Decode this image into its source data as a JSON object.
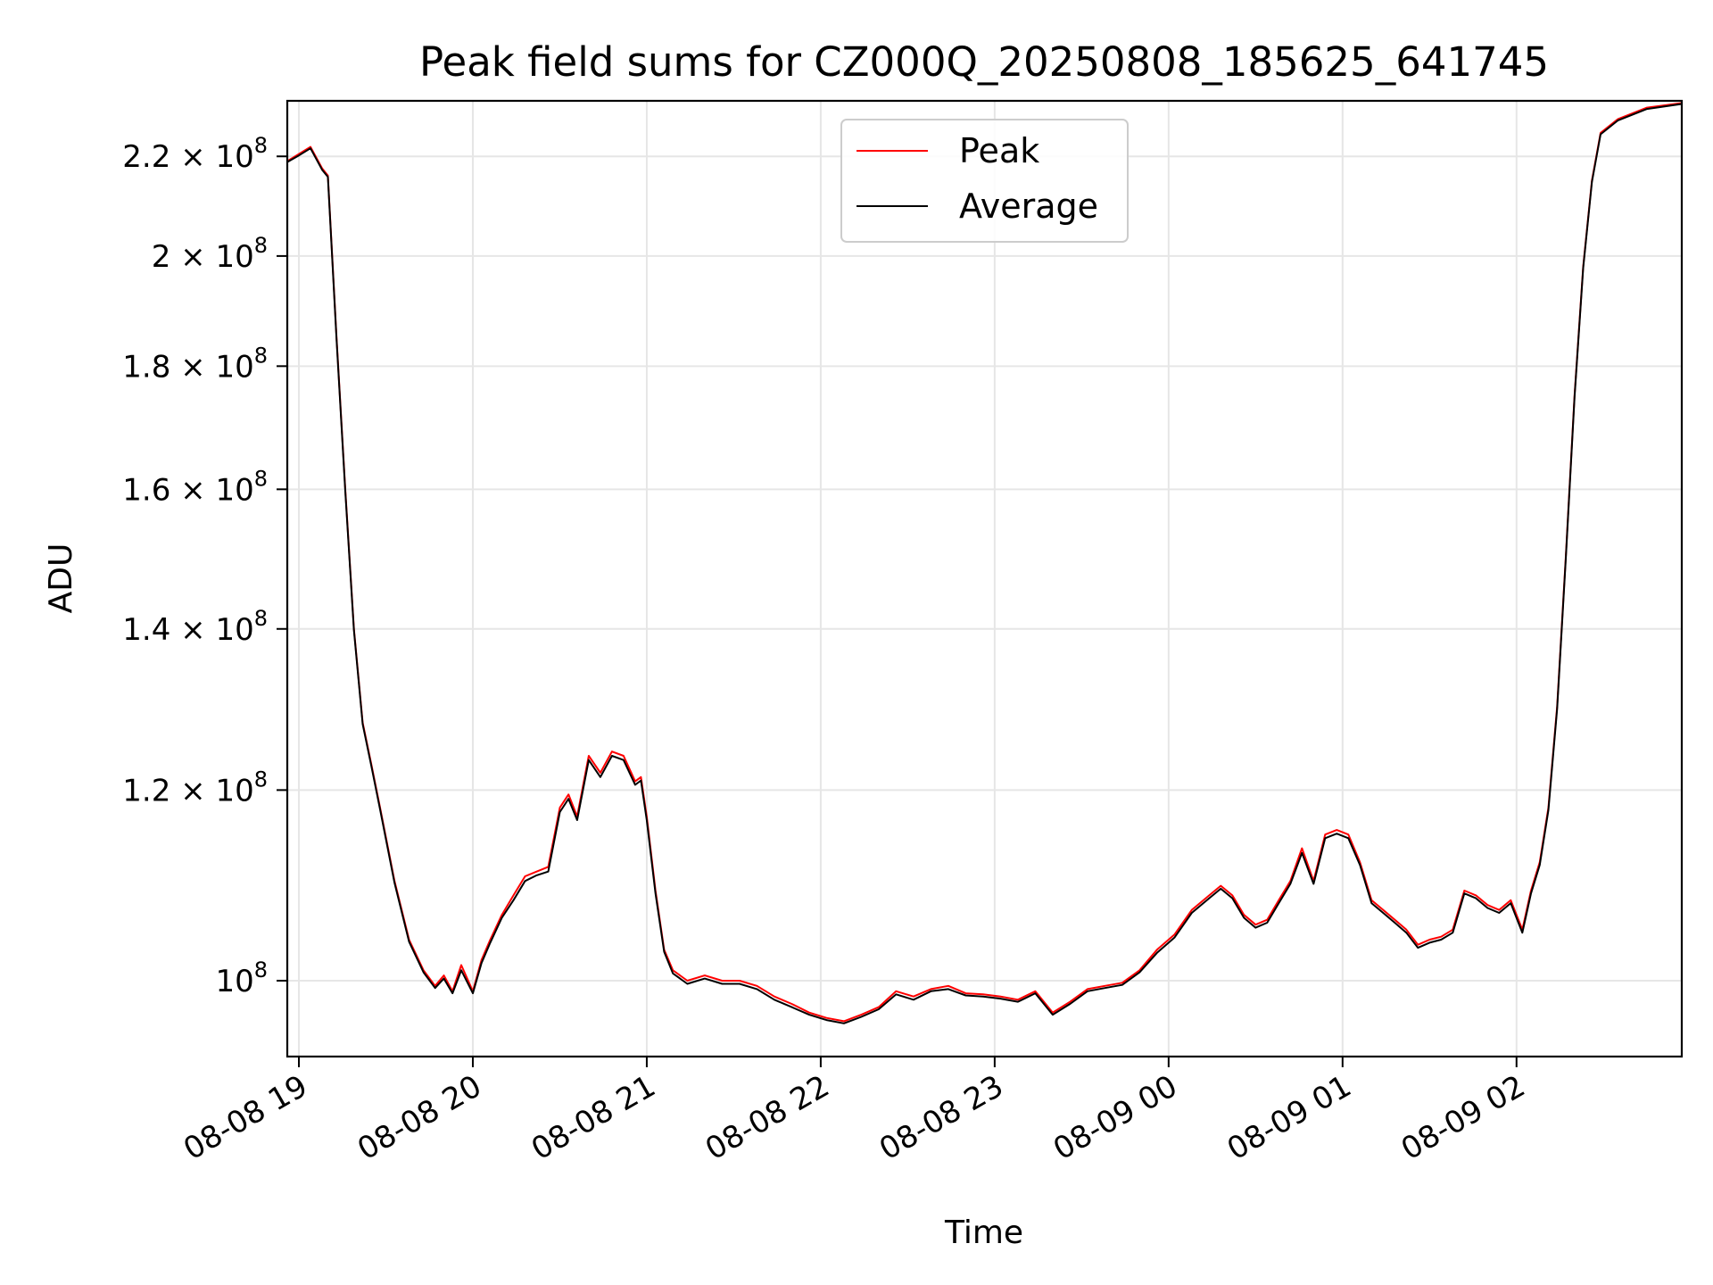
{
  "chart_data": {
    "type": "line",
    "title": "Peak field sums for CZ000Q_20250808_185625_641745",
    "xlabel": "Time",
    "ylabel": "ADU",
    "y_scale": "log",
    "ylim": [
      93000000,
      232000000
    ],
    "xlim": [
      "2025-08-08 18:56",
      "2025-08-09 02:57"
    ],
    "grid": true,
    "legend_position": "upper-center",
    "x_ticks": [
      {
        "t": "2025-08-08 19:00",
        "label": "08-08 19"
      },
      {
        "t": "2025-08-08 20:00",
        "label": "08-08 20"
      },
      {
        "t": "2025-08-08 21:00",
        "label": "08-08 21"
      },
      {
        "t": "2025-08-08 22:00",
        "label": "08-08 22"
      },
      {
        "t": "2025-08-08 23:00",
        "label": "08-08 23"
      },
      {
        "t": "2025-08-09 00:00",
        "label": "08-09 00"
      },
      {
        "t": "2025-08-09 01:00",
        "label": "08-09 01"
      },
      {
        "t": "2025-08-09 02:00",
        "label": "08-09 02"
      }
    ],
    "y_ticks": [
      {
        "v": 100000000,
        "mant": "10",
        "exp": "8"
      },
      {
        "v": 120000000,
        "mant": "1.2 × 10",
        "exp": "8"
      },
      {
        "v": 140000000,
        "mant": "1.4 × 10",
        "exp": "8"
      },
      {
        "v": 160000000,
        "mant": "1.6 × 10",
        "exp": "8"
      },
      {
        "v": 180000000,
        "mant": "1.8 × 10",
        "exp": "8"
      },
      {
        "v": 200000000,
        "mant": "2 × 10",
        "exp": "8"
      },
      {
        "v": 220000000,
        "mant": "2.2 × 10",
        "exp": "8"
      }
    ],
    "series": [
      {
        "name": "Peak",
        "color": "#ff0000",
        "points": [
          [
            "2025-08-08 18:56",
            219000000
          ],
          [
            "2025-08-08 19:00",
            220500000
          ],
          [
            "2025-08-08 19:04",
            222000000
          ],
          [
            "2025-08-08 19:08",
            217500000
          ],
          [
            "2025-08-08 19:10",
            216000000
          ],
          [
            "2025-08-08 19:13",
            185000000
          ],
          [
            "2025-08-08 19:16",
            160000000
          ],
          [
            "2025-08-08 19:19",
            140000000
          ],
          [
            "2025-08-08 19:22",
            128000000
          ],
          [
            "2025-08-08 19:25",
            123000000
          ],
          [
            "2025-08-08 19:28",
            118000000
          ],
          [
            "2025-08-08 19:33",
            110000000
          ],
          [
            "2025-08-08 19:38",
            104000000
          ],
          [
            "2025-08-08 19:43",
            101000000
          ],
          [
            "2025-08-08 19:47",
            99500000
          ],
          [
            "2025-08-08 19:50",
            100500000
          ],
          [
            "2025-08-08 19:53",
            99000000
          ],
          [
            "2025-08-08 19:56",
            101500000
          ],
          [
            "2025-08-08 20:00",
            99000000
          ],
          [
            "2025-08-08 20:03",
            102000000
          ],
          [
            "2025-08-08 20:06",
            104000000
          ],
          [
            "2025-08-08 20:10",
            106500000
          ],
          [
            "2025-08-08 20:14",
            108500000
          ],
          [
            "2025-08-08 20:18",
            110500000
          ],
          [
            "2025-08-08 20:22",
            111000000
          ],
          [
            "2025-08-08 20:26",
            111500000
          ],
          [
            "2025-08-08 20:30",
            118000000
          ],
          [
            "2025-08-08 20:33",
            119500000
          ],
          [
            "2025-08-08 20:36",
            117000000
          ],
          [
            "2025-08-08 20:40",
            124000000
          ],
          [
            "2025-08-08 20:44",
            122000000
          ],
          [
            "2025-08-08 20:48",
            124500000
          ],
          [
            "2025-08-08 20:52",
            124000000
          ],
          [
            "2025-08-08 20:56",
            121000000
          ],
          [
            "2025-08-08 20:58",
            121500000
          ],
          [
            "2025-08-08 21:00",
            117000000
          ],
          [
            "2025-08-08 21:03",
            109000000
          ],
          [
            "2025-08-08 21:06",
            103000000
          ],
          [
            "2025-08-08 21:09",
            101000000
          ],
          [
            "2025-08-08 21:14",
            100000000
          ],
          [
            "2025-08-08 21:20",
            100500000
          ],
          [
            "2025-08-08 21:26",
            100000000
          ],
          [
            "2025-08-08 21:32",
            100000000
          ],
          [
            "2025-08-08 21:38",
            99500000
          ],
          [
            "2025-08-08 21:44",
            98500000
          ],
          [
            "2025-08-08 21:50",
            97800000
          ],
          [
            "2025-08-08 21:56",
            97000000
          ],
          [
            "2025-08-08 22:02",
            96500000
          ],
          [
            "2025-08-08 22:08",
            96200000
          ],
          [
            "2025-08-08 22:14",
            96800000
          ],
          [
            "2025-08-08 22:20",
            97500000
          ],
          [
            "2025-08-08 22:26",
            99000000
          ],
          [
            "2025-08-08 22:32",
            98500000
          ],
          [
            "2025-08-08 22:38",
            99200000
          ],
          [
            "2025-08-08 22:44",
            99500000
          ],
          [
            "2025-08-08 22:50",
            98800000
          ],
          [
            "2025-08-08 22:56",
            98700000
          ],
          [
            "2025-08-08 23:02",
            98500000
          ],
          [
            "2025-08-08 23:08",
            98200000
          ],
          [
            "2025-08-08 23:14",
            99000000
          ],
          [
            "2025-08-08 23:20",
            97000000
          ],
          [
            "2025-08-08 23:26",
            98000000
          ],
          [
            "2025-08-08 23:32",
            99200000
          ],
          [
            "2025-08-08 23:38",
            99500000
          ],
          [
            "2025-08-08 23:44",
            99800000
          ],
          [
            "2025-08-08 23:50",
            101000000
          ],
          [
            "2025-08-08 23:56",
            103000000
          ],
          [
            "2025-08-09 00:02",
            104500000
          ],
          [
            "2025-08-09 00:08",
            107000000
          ],
          [
            "2025-08-09 00:14",
            108500000
          ],
          [
            "2025-08-09 00:18",
            109500000
          ],
          [
            "2025-08-09 00:22",
            108500000
          ],
          [
            "2025-08-09 00:26",
            106500000
          ],
          [
            "2025-08-09 00:30",
            105500000
          ],
          [
            "2025-08-09 00:34",
            106000000
          ],
          [
            "2025-08-09 00:38",
            108000000
          ],
          [
            "2025-08-09 00:42",
            110000000
          ],
          [
            "2025-08-09 00:46",
            113500000
          ],
          [
            "2025-08-09 00:50",
            110000000
          ],
          [
            "2025-08-09 00:54",
            115000000
          ],
          [
            "2025-08-09 00:58",
            115500000
          ],
          [
            "2025-08-09 01:02",
            115000000
          ],
          [
            "2025-08-09 01:06",
            112000000
          ],
          [
            "2025-08-09 01:10",
            108000000
          ],
          [
            "2025-08-09 01:14",
            107000000
          ],
          [
            "2025-08-09 01:18",
            106000000
          ],
          [
            "2025-08-09 01:22",
            105000000
          ],
          [
            "2025-08-09 01:26",
            103500000
          ],
          [
            "2025-08-09 01:30",
            104000000
          ],
          [
            "2025-08-09 01:34",
            104300000
          ],
          [
            "2025-08-09 01:38",
            105000000
          ],
          [
            "2025-08-09 01:42",
            109000000
          ],
          [
            "2025-08-09 01:46",
            108500000
          ],
          [
            "2025-08-09 01:50",
            107500000
          ],
          [
            "2025-08-09 01:54",
            107000000
          ],
          [
            "2025-08-09 01:58",
            108000000
          ],
          [
            "2025-08-09 02:02",
            105000000
          ],
          [
            "2025-08-09 02:05",
            109000000
          ],
          [
            "2025-08-09 02:08",
            112000000
          ],
          [
            "2025-08-09 02:11",
            118000000
          ],
          [
            "2025-08-09 02:14",
            130000000
          ],
          [
            "2025-08-09 02:17",
            150000000
          ],
          [
            "2025-08-09 02:20",
            175000000
          ],
          [
            "2025-08-09 02:23",
            198000000
          ],
          [
            "2025-08-09 02:26",
            215000000
          ],
          [
            "2025-08-09 02:29",
            225000000
          ],
          [
            "2025-08-09 02:35",
            228000000
          ],
          [
            "2025-08-09 02:45",
            230500000
          ],
          [
            "2025-08-09 02:57",
            231500000
          ]
        ]
      },
      {
        "name": "Average",
        "color": "#000000",
        "points": [
          [
            "2025-08-08 18:56",
            218800000
          ],
          [
            "2025-08-08 19:00",
            220200000
          ],
          [
            "2025-08-08 19:04",
            221700000
          ],
          [
            "2025-08-08 19:08",
            217200000
          ],
          [
            "2025-08-08 19:10",
            215700000
          ],
          [
            "2025-08-08 19:13",
            184700000
          ],
          [
            "2025-08-08 19:16",
            159700000
          ],
          [
            "2025-08-08 19:19",
            139800000
          ],
          [
            "2025-08-08 19:22",
            127800000
          ],
          [
            "2025-08-08 19:25",
            122800000
          ],
          [
            "2025-08-08 19:28",
            117800000
          ],
          [
            "2025-08-08 19:33",
            109800000
          ],
          [
            "2025-08-08 19:38",
            103800000
          ],
          [
            "2025-08-08 19:43",
            100800000
          ],
          [
            "2025-08-08 19:47",
            99300000
          ],
          [
            "2025-08-08 19:50",
            100200000
          ],
          [
            "2025-08-08 19:53",
            98800000
          ],
          [
            "2025-08-08 19:56",
            101000000
          ],
          [
            "2025-08-08 20:00",
            98800000
          ],
          [
            "2025-08-08 20:03",
            101700000
          ],
          [
            "2025-08-08 20:06",
            103700000
          ],
          [
            "2025-08-08 20:10",
            106200000
          ],
          [
            "2025-08-08 20:14",
            108000000
          ],
          [
            "2025-08-08 20:18",
            110000000
          ],
          [
            "2025-08-08 20:22",
            110600000
          ],
          [
            "2025-08-08 20:26",
            111000000
          ],
          [
            "2025-08-08 20:30",
            117500000
          ],
          [
            "2025-08-08 20:33",
            119000000
          ],
          [
            "2025-08-08 20:36",
            116600000
          ],
          [
            "2025-08-08 20:40",
            123500000
          ],
          [
            "2025-08-08 20:44",
            121500000
          ],
          [
            "2025-08-08 20:48",
            124000000
          ],
          [
            "2025-08-08 20:52",
            123500000
          ],
          [
            "2025-08-08 20:56",
            120600000
          ],
          [
            "2025-08-08 20:58",
            121100000
          ],
          [
            "2025-08-08 21:00",
            116600000
          ],
          [
            "2025-08-08 21:03",
            108700000
          ],
          [
            "2025-08-08 21:06",
            102800000
          ],
          [
            "2025-08-08 21:09",
            100700000
          ],
          [
            "2025-08-08 21:14",
            99700000
          ],
          [
            "2025-08-08 21:20",
            100200000
          ],
          [
            "2025-08-08 21:26",
            99700000
          ],
          [
            "2025-08-08 21:32",
            99700000
          ],
          [
            "2025-08-08 21:38",
            99200000
          ],
          [
            "2025-08-08 21:44",
            98200000
          ],
          [
            "2025-08-08 21:50",
            97500000
          ],
          [
            "2025-08-08 21:56",
            96800000
          ],
          [
            "2025-08-08 22:02",
            96300000
          ],
          [
            "2025-08-08 22:08",
            96000000
          ],
          [
            "2025-08-08 22:14",
            96600000
          ],
          [
            "2025-08-08 22:20",
            97300000
          ],
          [
            "2025-08-08 22:26",
            98700000
          ],
          [
            "2025-08-08 22:32",
            98200000
          ],
          [
            "2025-08-08 22:38",
            99000000
          ],
          [
            "2025-08-08 22:44",
            99200000
          ],
          [
            "2025-08-08 22:50",
            98600000
          ],
          [
            "2025-08-08 22:56",
            98500000
          ],
          [
            "2025-08-08 23:02",
            98300000
          ],
          [
            "2025-08-08 23:08",
            98000000
          ],
          [
            "2025-08-08 23:14",
            98800000
          ],
          [
            "2025-08-08 23:20",
            96800000
          ],
          [
            "2025-08-08 23:26",
            97800000
          ],
          [
            "2025-08-08 23:32",
            99000000
          ],
          [
            "2025-08-08 23:38",
            99300000
          ],
          [
            "2025-08-08 23:44",
            99600000
          ],
          [
            "2025-08-08 23:50",
            100800000
          ],
          [
            "2025-08-08 23:56",
            102700000
          ],
          [
            "2025-08-09 00:02",
            104200000
          ],
          [
            "2025-08-09 00:08",
            106700000
          ],
          [
            "2025-08-09 00:14",
            108200000
          ],
          [
            "2025-08-09 00:18",
            109200000
          ],
          [
            "2025-08-09 00:22",
            108200000
          ],
          [
            "2025-08-09 00:26",
            106200000
          ],
          [
            "2025-08-09 00:30",
            105200000
          ],
          [
            "2025-08-09 00:34",
            105700000
          ],
          [
            "2025-08-09 00:38",
            107700000
          ],
          [
            "2025-08-09 00:42",
            109700000
          ],
          [
            "2025-08-09 00:46",
            113000000
          ],
          [
            "2025-08-09 00:50",
            109700000
          ],
          [
            "2025-08-09 00:54",
            114600000
          ],
          [
            "2025-08-09 00:58",
            115100000
          ],
          [
            "2025-08-09 01:02",
            114600000
          ],
          [
            "2025-08-09 01:06",
            111700000
          ],
          [
            "2025-08-09 01:10",
            107700000
          ],
          [
            "2025-08-09 01:14",
            106700000
          ],
          [
            "2025-08-09 01:18",
            105700000
          ],
          [
            "2025-08-09 01:22",
            104700000
          ],
          [
            "2025-08-09 01:26",
            103200000
          ],
          [
            "2025-08-09 01:30",
            103700000
          ],
          [
            "2025-08-09 01:34",
            104000000
          ],
          [
            "2025-08-09 01:38",
            104700000
          ],
          [
            "2025-08-09 01:42",
            108700000
          ],
          [
            "2025-08-09 01:46",
            108200000
          ],
          [
            "2025-08-09 01:50",
            107200000
          ],
          [
            "2025-08-09 01:54",
            106700000
          ],
          [
            "2025-08-09 01:58",
            107700000
          ],
          [
            "2025-08-09 02:02",
            104700000
          ],
          [
            "2025-08-09 02:05",
            108700000
          ],
          [
            "2025-08-09 02:08",
            111700000
          ],
          [
            "2025-08-09 02:11",
            117700000
          ],
          [
            "2025-08-09 02:14",
            129700000
          ],
          [
            "2025-08-09 02:17",
            149700000
          ],
          [
            "2025-08-09 02:20",
            174700000
          ],
          [
            "2025-08-09 02:23",
            197700000
          ],
          [
            "2025-08-09 02:26",
            214700000
          ],
          [
            "2025-08-09 02:29",
            224700000
          ],
          [
            "2025-08-09 02:35",
            227700000
          ],
          [
            "2025-08-09 02:45",
            230200000
          ],
          [
            "2025-08-09 02:57",
            231300000
          ]
        ]
      }
    ]
  }
}
